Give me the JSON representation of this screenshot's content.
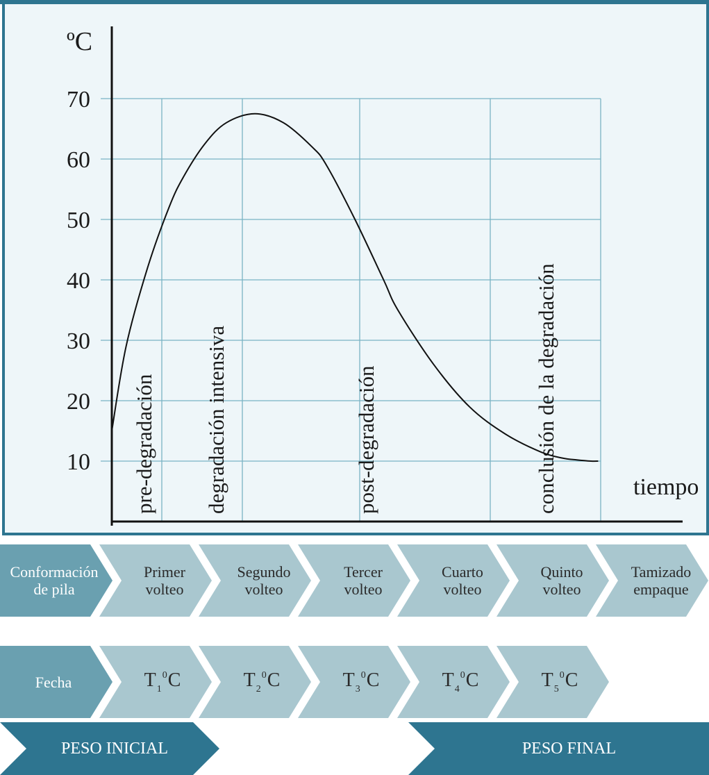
{
  "chart_data": {
    "type": "line",
    "y_unit_label": "ºC",
    "x_label": "tiempo",
    "y_ticks": [
      10,
      20,
      30,
      40,
      50,
      60,
      70
    ],
    "ylim": [
      0,
      78
    ],
    "grid": true,
    "phases": [
      {
        "label": "pre-degradación",
        "x": 0.5
      },
      {
        "label": "degradación intensiva",
        "x": 1.5
      },
      {
        "label": "post-degradación",
        "x": 3.3
      },
      {
        "label": "conclusión de la degradación",
        "x": 5.6
      }
    ],
    "series": [
      {
        "x": [
          0,
          0.2,
          0.5,
          0.8,
          1.0,
          1.3,
          1.6,
          2.0,
          2.4,
          2.8,
          3.0,
          3.4,
          3.8,
          4.0,
          4.5,
          5.0,
          5.5,
          6.0,
          6.3,
          6.5,
          6.7,
          6.8
        ],
        "y": [
          15,
          29,
          42,
          52,
          57,
          62.5,
          66,
          67.5,
          66,
          62,
          59,
          50,
          40,
          35,
          26,
          19,
          14.5,
          11.5,
          10.5,
          10.2,
          10,
          10
        ]
      }
    ]
  },
  "stages": {
    "steps": [
      {
        "line1": "Conformación",
        "line2": "de pila"
      },
      {
        "line1": "Primer",
        "line2": "volteo"
      },
      {
        "line1": "Segundo",
        "line2": "volteo"
      },
      {
        "line1": "Tercer",
        "line2": "volteo"
      },
      {
        "line1": "Cuarto",
        "line2": "volteo"
      },
      {
        "line1": "Quinto",
        "line2": "volteo"
      },
      {
        "line1": "Tamizado",
        "line2": "empaque"
      }
    ],
    "date_label": "Fecha",
    "temps": [
      {
        "T": "T",
        "n": "1",
        "deg": "0",
        "C": "C"
      },
      {
        "T": "T",
        "n": "2",
        "deg": "0",
        "C": "C"
      },
      {
        "T": "T",
        "n": "3",
        "deg": "0",
        "C": "C"
      },
      {
        "T": "T",
        "n": "4",
        "deg": "0",
        "C": "C"
      },
      {
        "T": "T",
        "n": "5",
        "deg": "0",
        "C": "C"
      }
    ],
    "initial_weight": "PESO INICIAL",
    "final_weight": "PESO FINAL"
  },
  "colors": {
    "frame": "#2e7590",
    "panel_bg": "#eef6f9",
    "grid": "#79b3c4",
    "chevron_light": "#a9c7cf",
    "chevron_mid": "#6aa0b0",
    "chevron_dark": "#2e7590"
  }
}
